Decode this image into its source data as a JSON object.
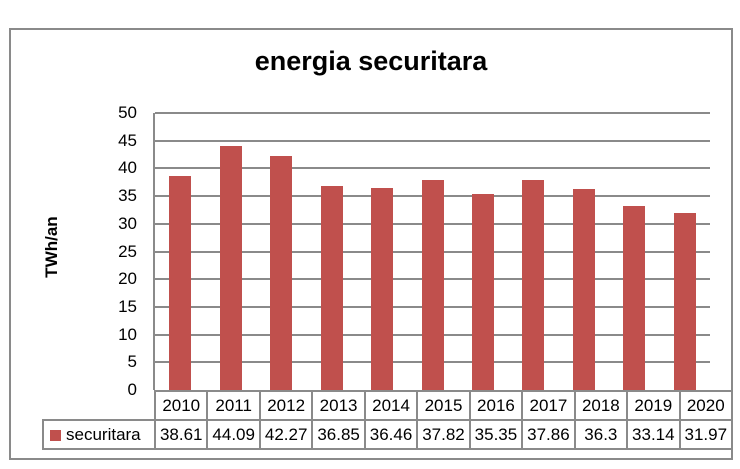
{
  "chart": {
    "title": "energia securitara",
    "y_axis_label": "TWh/an"
  },
  "chart_data": {
    "type": "bar",
    "title": "energia securitara",
    "xlabel": "",
    "ylabel": "TWh/an",
    "categories": [
      "2010",
      "2011",
      "2012",
      "2013",
      "2014",
      "2015",
      "2016",
      "2017",
      "2018",
      "2019",
      "2020"
    ],
    "series": [
      {
        "name": "securitara",
        "values": [
          38.61,
          44.09,
          42.27,
          36.85,
          36.46,
          37.82,
          35.35,
          37.86,
          36.3,
          33.14,
          31.97
        ]
      }
    ],
    "ylim": [
      0,
      50
    ],
    "ytick_step": 5,
    "grid": true,
    "legend_position": "data-table-bottom-left",
    "colors": {
      "bar": "#C0504D",
      "grid": "#8A8A8A",
      "text": "#000000",
      "background": "#FFFFFF"
    }
  }
}
